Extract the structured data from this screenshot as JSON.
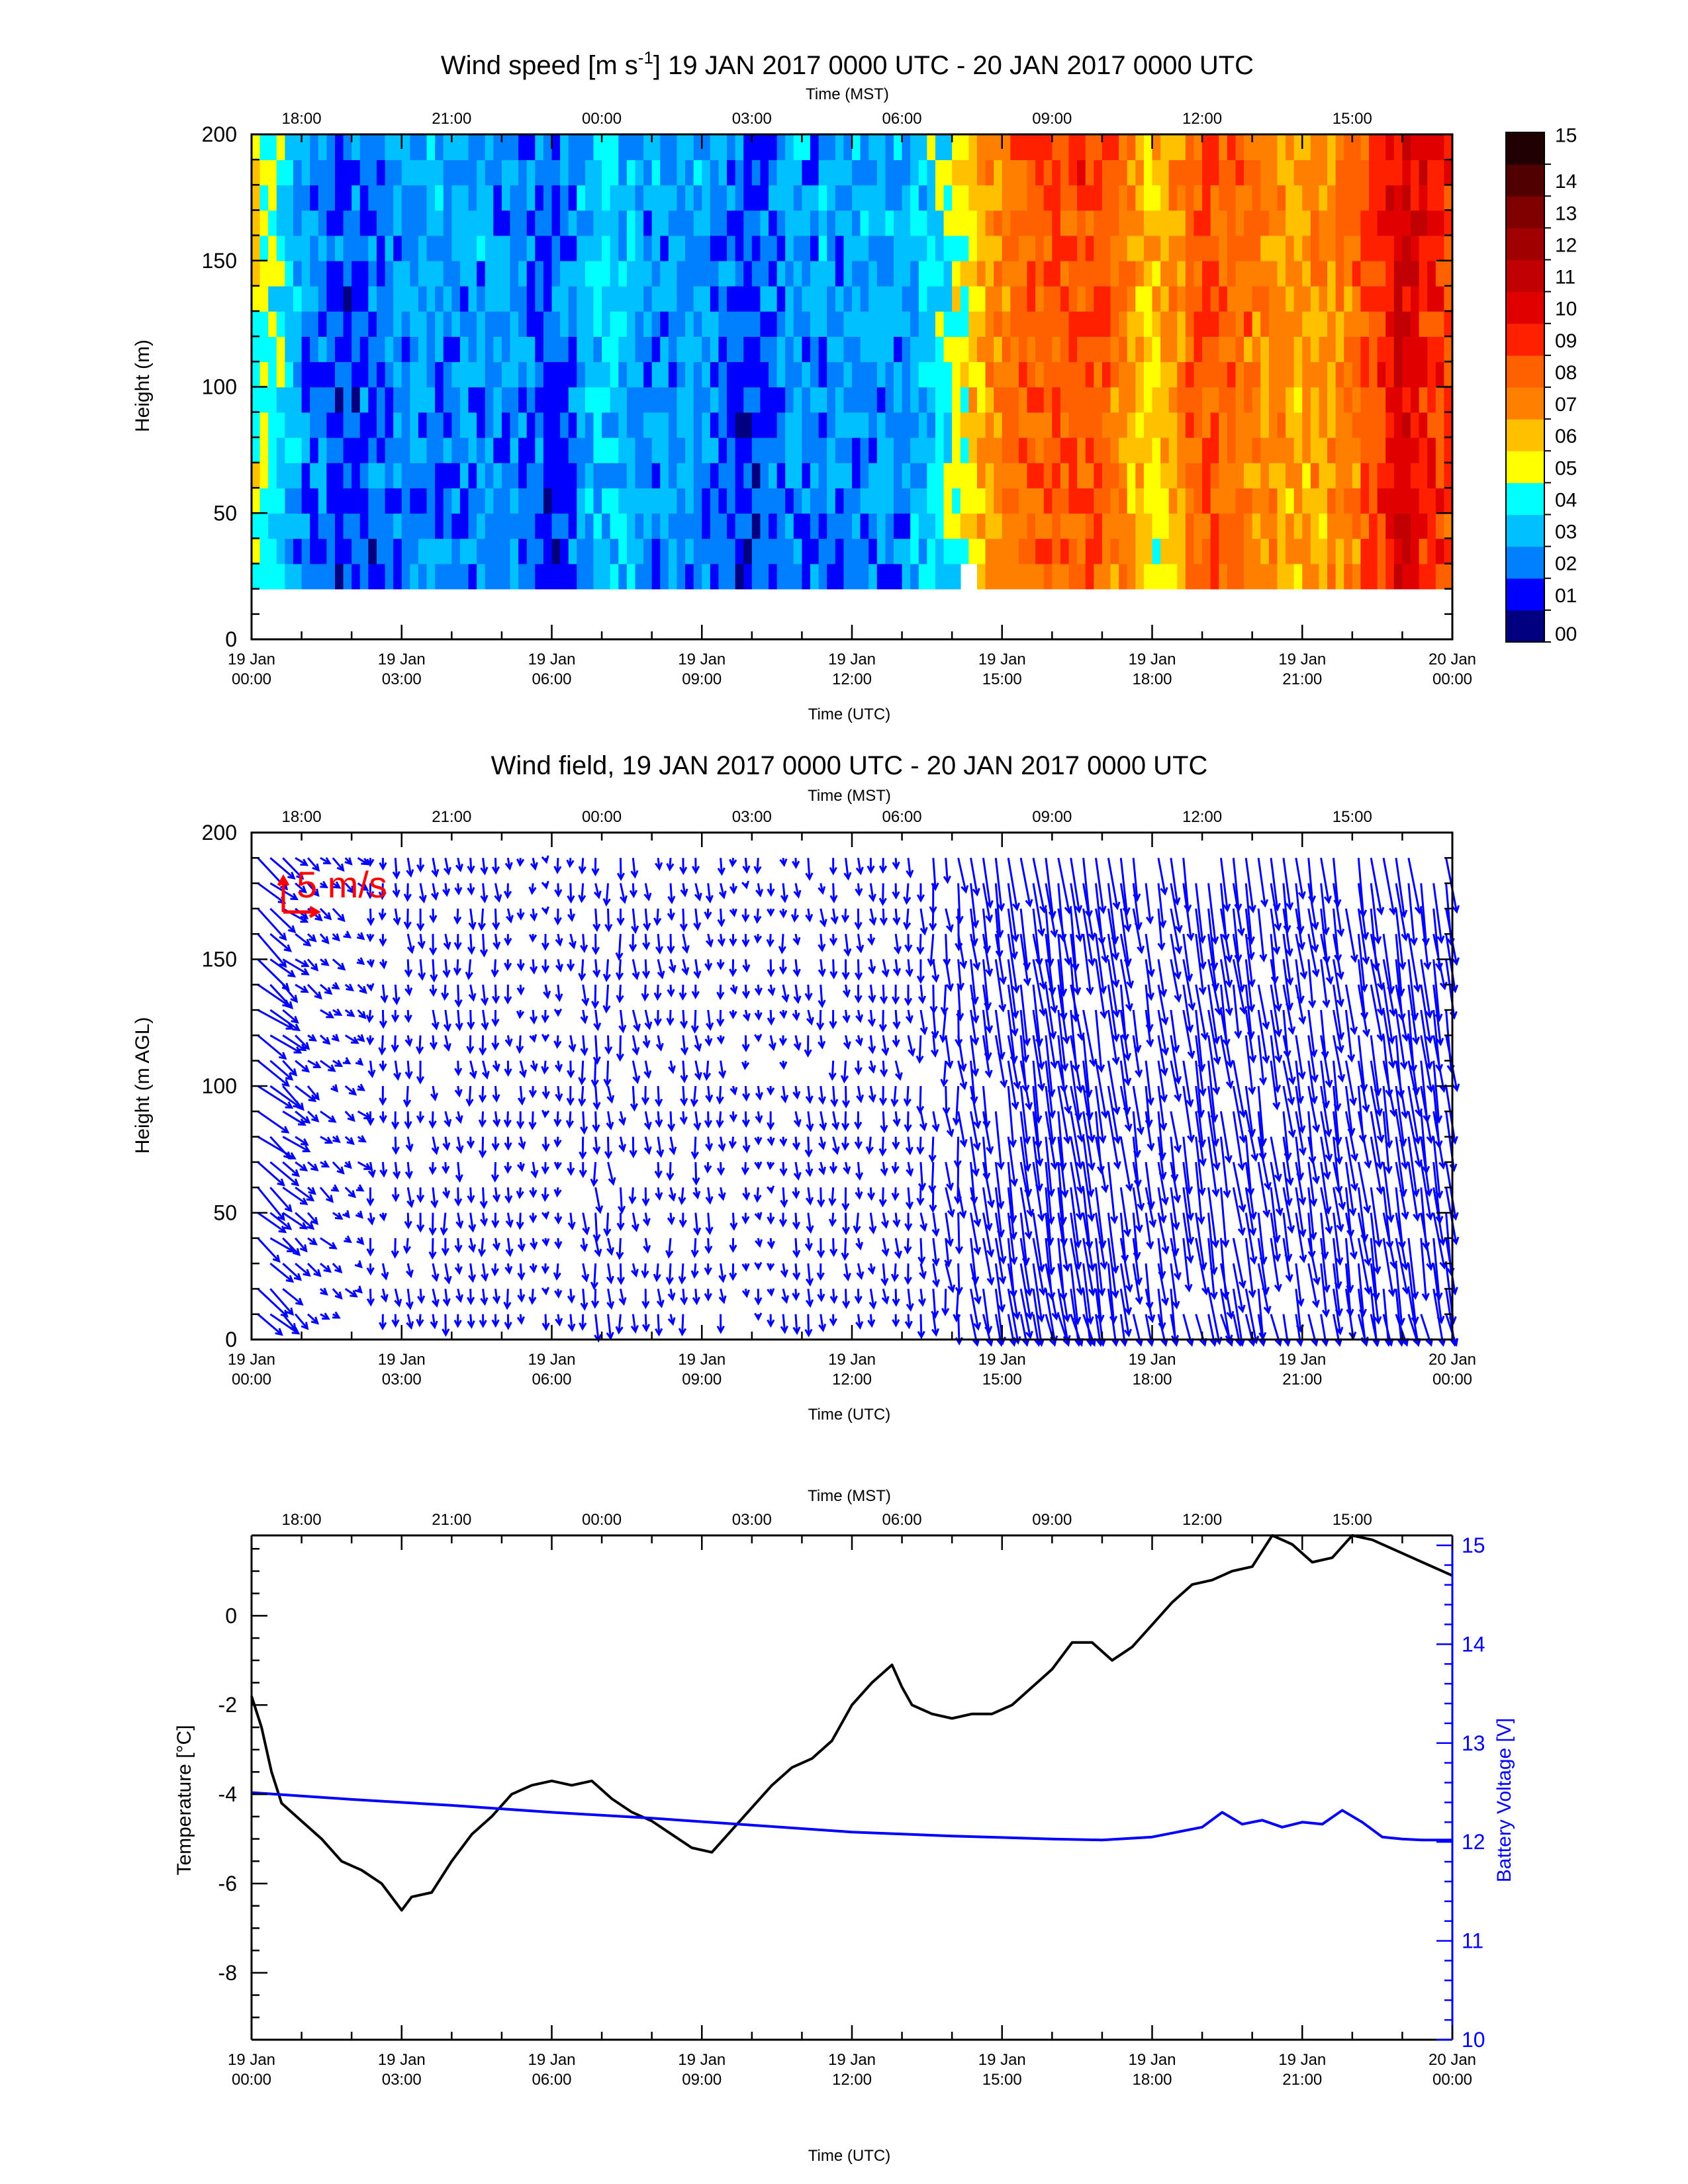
{
  "chart_data": [
    {
      "type": "heatmap",
      "title_prefix": "Wind speed [m s",
      "title_sup": "-1",
      "title_suffix": "] 19 JAN 2017 0000 UTC - 20 JAN 2017 0000 UTC",
      "ylabel": "Height (m)",
      "xlabel_bottom": "Time (UTC)",
      "xlabel_top": "Time (MST)",
      "ylim": [
        0,
        200
      ],
      "yticks": [
        "0",
        "50",
        "100",
        "150",
        "200"
      ],
      "xticks_utc": [
        "19 Jan\n00:00",
        "19 Jan\n03:00",
        "19 Jan\n06:00",
        "19 Jan\n09:00",
        "19 Jan\n12:00",
        "19 Jan\n15:00",
        "19 Jan\n18:00",
        "19 Jan\n21:00",
        "20 Jan\n00:00"
      ],
      "xticks_mst": [
        "18:00",
        "21:00",
        "00:00",
        "03:00",
        "06:00",
        "09:00",
        "12:00",
        "15:00"
      ],
      "colorbar": {
        "labels": [
          "00",
          "01",
          "02",
          "03",
          "04",
          "05",
          "06",
          "07",
          "08",
          "09",
          "10",
          "11",
          "12",
          "13",
          "14",
          "15"
        ],
        "colors": [
          "#000080",
          "#0000ff",
          "#0080ff",
          "#00c0ff",
          "#00ffff",
          "#ffff00",
          "#ffc000",
          "#ff8000",
          "#ff6000",
          "#ff2000",
          "#e00000",
          "#c00000",
          "#a00000",
          "#800000",
          "#500000",
          "#200000"
        ]
      },
      "speed_by_hour_utc": {
        "hours": [
          0,
          1,
          2,
          3,
          4,
          5,
          6,
          7,
          8,
          9,
          10,
          11,
          12,
          13,
          14,
          15,
          16,
          17,
          18,
          19,
          20,
          21,
          22,
          23,
          24
        ],
        "speed": [
          5,
          2,
          1,
          2,
          2,
          2,
          1,
          3,
          2,
          2,
          1,
          2,
          2,
          2,
          4,
          7,
          8,
          8,
          5,
          8,
          7,
          6,
          7,
          10,
          8
        ],
        "missing_below_m": 20,
        "missing_gap_hours": [
          14.2,
          14.5
        ]
      }
    },
    {
      "type": "vector",
      "title": "Wind field, 19 JAN 2017 0000 UTC - 20 JAN 2017 0000 UTC",
      "ylabel": "Height (m AGL)",
      "xlabel_bottom": "Time (UTC)",
      "xlabel_top": "Time (MST)",
      "ylim": [
        0,
        200
      ],
      "yticks": [
        "0",
        "50",
        "100",
        "150",
        "200"
      ],
      "xticks_utc": [
        "19 Jan\n00:00",
        "19 Jan\n03:00",
        "19 Jan\n06:00",
        "19 Jan\n09:00",
        "19 Jan\n12:00",
        "19 Jan\n15:00",
        "19 Jan\n18:00",
        "19 Jan\n21:00",
        "20 Jan\n00:00"
      ],
      "xticks_mst": [
        "18:00",
        "21:00",
        "00:00",
        "03:00",
        "06:00",
        "09:00",
        "12:00",
        "15:00"
      ],
      "reference_label": "5 m/s",
      "reference_speed": 5,
      "arrow_color": "#0000ff",
      "reference_color": "#ff0000"
    },
    {
      "type": "line",
      "xlabel_bottom": "Time (UTC)",
      "xlabel_top": "Time (MST)",
      "ylabel_left": "Temperature [°C]",
      "ylabel_right": "Battery Voltage [V]",
      "ylim_left": [
        -9.5,
        1.8
      ],
      "ylim_right": [
        10,
        15.1
      ],
      "yticks_left": [
        "-8",
        "-6",
        "-4",
        "-2",
        "0"
      ],
      "yticks_right": [
        "10",
        "11",
        "12",
        "13",
        "14",
        "15"
      ],
      "xticks_utc": [
        "19 Jan\n00:00",
        "19 Jan\n03:00",
        "19 Jan\n06:00",
        "19 Jan\n09:00",
        "19 Jan\n12:00",
        "19 Jan\n15:00",
        "19 Jan\n18:00",
        "19 Jan\n21:00",
        "20 Jan\n00:00"
      ],
      "xticks_mst": [
        "18:00",
        "21:00",
        "00:00",
        "03:00",
        "06:00",
        "09:00",
        "12:00",
        "15:00"
      ],
      "series": [
        {
          "color": "#000000",
          "axis": "left",
          "hours": [
            0,
            0.2,
            0.4,
            0.6,
            1.0,
            1.4,
            1.8,
            2.2,
            2.6,
            3.0,
            3.2,
            3.6,
            4.0,
            4.4,
            4.8,
            5.2,
            5.6,
            6.0,
            6.4,
            6.8,
            7.2,
            7.6,
            8.0,
            8.4,
            8.8,
            9.2,
            9.6,
            10.0,
            10.4,
            10.8,
            11.2,
            11.6,
            12.0,
            12.4,
            12.8,
            13.0,
            13.2,
            13.6,
            14.0,
            14.4,
            14.8,
            15.2,
            15.6,
            16.0,
            16.4,
            16.8,
            17.2,
            17.6,
            18.0,
            18.4,
            18.8,
            19.2,
            19.6,
            20.0,
            20.4,
            20.8,
            21.2,
            21.6,
            22.0,
            22.4,
            22.8,
            23.2,
            23.6,
            24.0
          ],
          "values": [
            -1.8,
            -2.5,
            -3.5,
            -4.2,
            -4.6,
            -5.0,
            -5.5,
            -5.7,
            -6.0,
            -6.6,
            -6.3,
            -6.2,
            -5.5,
            -4.9,
            -4.5,
            -4.0,
            -3.8,
            -3.7,
            -3.8,
            -3.7,
            -4.1,
            -4.4,
            -4.6,
            -4.9,
            -5.2,
            -5.3,
            -4.8,
            -4.3,
            -3.8,
            -3.4,
            -3.2,
            -2.8,
            -2.0,
            -1.5,
            -1.1,
            -1.6,
            -2.0,
            -2.2,
            -2.3,
            -2.2,
            -2.2,
            -2.0,
            -1.6,
            -1.2,
            -0.6,
            -0.6,
            -1.0,
            -0.7,
            -0.2,
            0.3,
            0.7,
            0.8,
            1.0,
            1.1,
            1.8,
            1.6,
            1.2,
            1.3,
            1.9,
            1.7,
            1.5,
            1.3,
            1.1,
            0.9
          ]
        },
        {
          "color": "#0000ff",
          "axis": "right",
          "hours": [
            0,
            2,
            4,
            6,
            8,
            10,
            12,
            14,
            16,
            17,
            18,
            19,
            19.4,
            19.8,
            20.2,
            20.6,
            21.0,
            21.4,
            21.8,
            22.2,
            22.6,
            23.0,
            23.4,
            24
          ],
          "values": [
            12.5,
            12.43,
            12.37,
            12.3,
            12.24,
            12.17,
            12.1,
            12.06,
            12.03,
            12.02,
            12.05,
            12.15,
            12.3,
            12.18,
            12.22,
            12.15,
            12.2,
            12.18,
            12.32,
            12.2,
            12.05,
            12.03,
            12.02,
            12.02
          ]
        }
      ]
    }
  ]
}
